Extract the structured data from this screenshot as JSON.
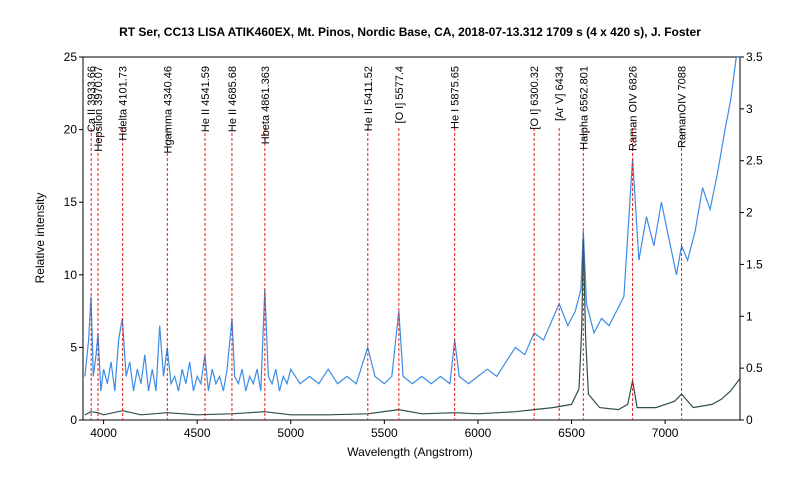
{
  "chart_data": {
    "type": "line",
    "title": "RT Ser, CC13 LISA ATIK460EX, Mt. Pinos, Nordic Base, CA,  2018-07-13.312   1709 s (4 x 420 s),  J. Foster",
    "xlabel": "Wavelength (Angstrom)",
    "ylabel": "Relative intensity",
    "xlim": [
      3890,
      7400
    ],
    "ylim_left": [
      0,
      25
    ],
    "ylim_right": [
      0,
      3.5
    ],
    "x_ticks": [
      4000,
      4500,
      5000,
      5500,
      6000,
      6500,
      7000
    ],
    "y_ticks_left": [
      0,
      5,
      10,
      15,
      20,
      25
    ],
    "y_ticks_right": [
      0,
      0.5,
      1,
      1.5,
      2,
      2.5,
      3,
      3.5
    ],
    "grid": false,
    "legend": "none",
    "series": [
      {
        "axis": "left",
        "color": "#3c8ce6",
        "points": [
          [
            3900,
            3.0
          ],
          [
            3920,
            5.5
          ],
          [
            3933,
            8.5
          ],
          [
            3945,
            3.0
          ],
          [
            3960,
            4.5
          ],
          [
            3970,
            6.0
          ],
          [
            3985,
            2.0
          ],
          [
            4000,
            3.5
          ],
          [
            4020,
            2.5
          ],
          [
            4040,
            4.0
          ],
          [
            4060,
            2.0
          ],
          [
            4080,
            5.5
          ],
          [
            4100,
            7.0
          ],
          [
            4120,
            3.0
          ],
          [
            4140,
            4.0
          ],
          [
            4160,
            2.0
          ],
          [
            4180,
            3.5
          ],
          [
            4200,
            2.5
          ],
          [
            4220,
            4.5
          ],
          [
            4240,
            2.0
          ],
          [
            4260,
            3.5
          ],
          [
            4280,
            2.0
          ],
          [
            4300,
            6.5
          ],
          [
            4320,
            3.0
          ],
          [
            4340,
            5.0
          ],
          [
            4360,
            2.5
          ],
          [
            4380,
            3.0
          ],
          [
            4400,
            2.0
          ],
          [
            4420,
            3.5
          ],
          [
            4440,
            2.5
          ],
          [
            4460,
            4.0
          ],
          [
            4480,
            2.0
          ],
          [
            4500,
            3.0
          ],
          [
            4520,
            2.5
          ],
          [
            4541,
            4.5
          ],
          [
            4560,
            2.0
          ],
          [
            4580,
            3.5
          ],
          [
            4600,
            2.5
          ],
          [
            4620,
            3.0
          ],
          [
            4640,
            2.0
          ],
          [
            4660,
            3.5
          ],
          [
            4686,
            7.0
          ],
          [
            4700,
            3.0
          ],
          [
            4720,
            2.5
          ],
          [
            4740,
            3.5
          ],
          [
            4760,
            2.0
          ],
          [
            4780,
            3.0
          ],
          [
            4800,
            2.5
          ],
          [
            4820,
            3.5
          ],
          [
            4840,
            2.0
          ],
          [
            4861,
            9.0
          ],
          [
            4880,
            3.0
          ],
          [
            4900,
            2.5
          ],
          [
            4920,
            3.5
          ],
          [
            4940,
            2.0
          ],
          [
            4960,
            3.0
          ],
          [
            4980,
            2.5
          ],
          [
            5000,
            3.5
          ],
          [
            5050,
            2.5
          ],
          [
            5100,
            3.0
          ],
          [
            5150,
            2.5
          ],
          [
            5200,
            3.5
          ],
          [
            5250,
            2.5
          ],
          [
            5300,
            3.0
          ],
          [
            5350,
            2.5
          ],
          [
            5411,
            5.0
          ],
          [
            5450,
            3.0
          ],
          [
            5500,
            2.5
          ],
          [
            5540,
            3.0
          ],
          [
            5577,
            7.5
          ],
          [
            5600,
            3.0
          ],
          [
            5650,
            2.5
          ],
          [
            5700,
            3.0
          ],
          [
            5750,
            2.5
          ],
          [
            5800,
            3.0
          ],
          [
            5850,
            2.5
          ],
          [
            5876,
            5.5
          ],
          [
            5900,
            3.0
          ],
          [
            5950,
            2.5
          ],
          [
            6000,
            3.0
          ],
          [
            6050,
            3.5
          ],
          [
            6100,
            3.0
          ],
          [
            6150,
            4.0
          ],
          [
            6200,
            5.0
          ],
          [
            6250,
            4.5
          ],
          [
            6300,
            6.0
          ],
          [
            6350,
            5.5
          ],
          [
            6400,
            7.0
          ],
          [
            6434,
            8.0
          ],
          [
            6480,
            6.5
          ],
          [
            6520,
            7.5
          ],
          [
            6550,
            9.0
          ],
          [
            6563,
            13.0
          ],
          [
            6580,
            8.0
          ],
          [
            6620,
            6.0
          ],
          [
            6660,
            7.0
          ],
          [
            6700,
            6.5
          ],
          [
            6740,
            7.5
          ],
          [
            6780,
            8.5
          ],
          [
            6826,
            18.0
          ],
          [
            6860,
            11.0
          ],
          [
            6900,
            14.0
          ],
          [
            6940,
            12.0
          ],
          [
            6980,
            15.0
          ],
          [
            7020,
            12.5
          ],
          [
            7060,
            10.0
          ],
          [
            7088,
            12.0
          ],
          [
            7120,
            11.0
          ],
          [
            7160,
            13.0
          ],
          [
            7200,
            16.0
          ],
          [
            7240,
            14.5
          ],
          [
            7280,
            17.0
          ],
          [
            7320,
            20.0
          ],
          [
            7350,
            22.0
          ],
          [
            7380,
            25.0
          ],
          [
            7400,
            25.0
          ]
        ]
      },
      {
        "axis": "right",
        "color": "#2f4f4f",
        "points": [
          [
            3900,
            0.05
          ],
          [
            3933,
            0.08
          ],
          [
            3970,
            0.07
          ],
          [
            4000,
            0.05
          ],
          [
            4101,
            0.09
          ],
          [
            4200,
            0.05
          ],
          [
            4340,
            0.07
          ],
          [
            4500,
            0.05
          ],
          [
            4686,
            0.06
          ],
          [
            4861,
            0.08
          ],
          [
            5000,
            0.05
          ],
          [
            5200,
            0.05
          ],
          [
            5411,
            0.06
          ],
          [
            5577,
            0.1
          ],
          [
            5700,
            0.06
          ],
          [
            5876,
            0.07
          ],
          [
            6000,
            0.06
          ],
          [
            6200,
            0.08
          ],
          [
            6300,
            0.1
          ],
          [
            6400,
            0.12
          ],
          [
            6500,
            0.15
          ],
          [
            6540,
            0.3
          ],
          [
            6555,
            0.9
          ],
          [
            6563,
            1.75
          ],
          [
            6575,
            0.8
          ],
          [
            6590,
            0.25
          ],
          [
            6650,
            0.12
          ],
          [
            6750,
            0.1
          ],
          [
            6800,
            0.15
          ],
          [
            6826,
            0.38
          ],
          [
            6850,
            0.12
          ],
          [
            6950,
            0.12
          ],
          [
            7050,
            0.18
          ],
          [
            7088,
            0.25
          ],
          [
            7150,
            0.12
          ],
          [
            7250,
            0.15
          ],
          [
            7300,
            0.2
          ],
          [
            7350,
            0.28
          ],
          [
            7400,
            0.4
          ]
        ]
      }
    ],
    "annotations": [
      {
        "x": 3933.66,
        "label": "Ca II 3933.66"
      },
      {
        "x": 3970.07,
        "label": "Hepsilon 3970.07"
      },
      {
        "x": 4101.73,
        "label": "Hdelta 4101.73"
      },
      {
        "x": 4340.46,
        "label": "Hgamma 4340.46"
      },
      {
        "x": 4541.59,
        "label": "He II 4541.59"
      },
      {
        "x": 4685.68,
        "label": "He II 4685.68"
      },
      {
        "x": 4861.363,
        "label": "Hbeta 4861.363"
      },
      {
        "x": 5411.52,
        "label": "He II 5411.52"
      },
      {
        "x": 5577.4,
        "label": "[O I] 5577.4"
      },
      {
        "x": 5875.65,
        "label": "He I 5875.65"
      },
      {
        "x": 6300.32,
        "label": "[O I] 6300.32"
      },
      {
        "x": 6434,
        "label": "[Ar V] 6434"
      },
      {
        "x": 6562.801,
        "label": "Halpha 6562.801"
      },
      {
        "x": 6826,
        "label": "Raman OIV 6826"
      },
      {
        "x": 7088,
        "label": "RamanOIV 7088"
      }
    ]
  }
}
